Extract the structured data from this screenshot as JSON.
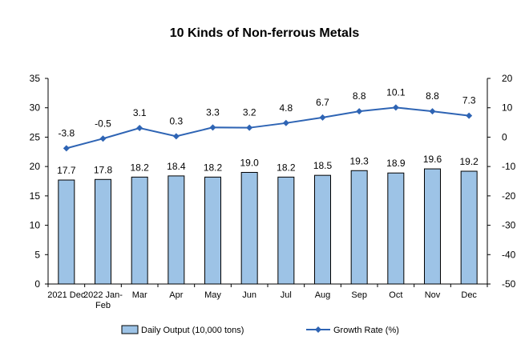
{
  "chart_data": {
    "type": "bar",
    "title": "10 Kinds of Non-ferrous Metals",
    "categories": [
      "2021 Dec",
      "2022 Jan-\nFeb",
      "Mar",
      "Apr",
      "May",
      "Jun",
      "Jul",
      "Aug",
      "Sep",
      "Oct",
      "Nov",
      "Dec"
    ],
    "series": [
      {
        "name": "Daily Output (10,000 tons)",
        "type": "bar",
        "axis": "left",
        "color": "#9dc3e6",
        "values": [
          17.7,
          17.8,
          18.2,
          18.4,
          18.2,
          19.0,
          18.2,
          18.5,
          19.3,
          18.9,
          19.6,
          19.2
        ],
        "labels": [
          "17.7",
          "17.8",
          "18.2",
          "18.4",
          "18.2",
          "19.0",
          "18.2",
          "18.5",
          "19.3",
          "18.9",
          "19.6",
          "19.2"
        ]
      },
      {
        "name": "Growth Rate (%)",
        "type": "line",
        "axis": "right",
        "color": "#2e64b4",
        "values": [
          -3.8,
          -0.5,
          3.1,
          0.3,
          3.3,
          3.2,
          4.8,
          6.7,
          8.8,
          10.1,
          8.8,
          7.3
        ],
        "labels": [
          "-3.8",
          "-0.5",
          "3.1",
          "0.3",
          "3.3",
          "3.2",
          "4.8",
          "6.7",
          "8.8",
          "10.1",
          "8.8",
          "7.3"
        ]
      }
    ],
    "y_left": {
      "min": 0,
      "max": 35,
      "step": 5,
      "ticks": [
        "0",
        "5",
        "10",
        "15",
        "20",
        "25",
        "30",
        "35"
      ]
    },
    "y_right": {
      "min": -50,
      "max": 20,
      "step": 10,
      "ticks": [
        "-50",
        "-40",
        "-30",
        "-20",
        "-10",
        "0",
        "10",
        "20"
      ]
    },
    "grid": false,
    "legend": "bottom"
  }
}
